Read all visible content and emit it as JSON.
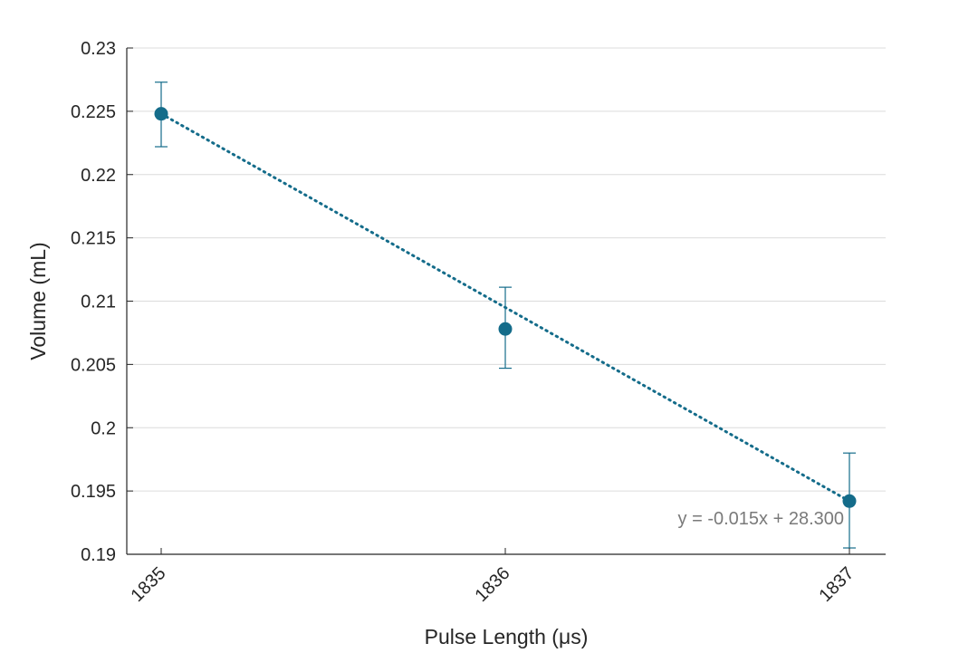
{
  "chart_data": {
    "type": "scatter",
    "xlabel": "Pulse Length (μs)",
    "ylabel": "Volume (mL)",
    "xlim": [
      1835,
      1837
    ],
    "ylim": [
      0.19,
      0.23
    ],
    "x_ticks": [
      "1835",
      "1836",
      "1837"
    ],
    "y_ticks": [
      "0.19",
      "0.195",
      "0.2",
      "0.205",
      "0.21",
      "0.215",
      "0.22",
      "0.225",
      "0.23"
    ],
    "grid": "horizontal",
    "series": [
      {
        "x": [
          1835,
          1836,
          1837
        ],
        "y": [
          0.2248,
          0.2078,
          0.1942
        ],
        "error_low": [
          0.0026,
          0.0031,
          0.0037
        ],
        "error_high": [
          0.0025,
          0.0033,
          0.0038
        ],
        "color": "#146c8a"
      }
    ],
    "trendline": {
      "slope": -0.015,
      "intercept": 28.3,
      "style": "dotted",
      "color": "#146c8a",
      "equation_label": "y = -0.015x + 28.300"
    }
  }
}
